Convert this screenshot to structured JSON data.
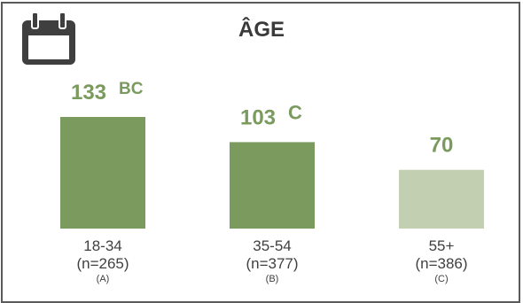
{
  "title": "ÂGE",
  "icon": "calendar-icon",
  "colors": {
    "strong": "#7a9a5e",
    "light": "#c2cfb1",
    "value_text": "#7a9a5e",
    "border": "#5a5a5a"
  },
  "chart_data": {
    "type": "bar",
    "categories": [
      "18-34",
      "35-54",
      "55+"
    ],
    "values": [
      133,
      103,
      70
    ],
    "sample_sizes": [
      "(n=265)",
      "(n=377)",
      "(n=386)"
    ],
    "group_letters": [
      "(A)",
      "(B)",
      "(C)"
    ],
    "significance": [
      "BC",
      "C",
      ""
    ],
    "bar_styles": [
      "strong",
      "strong",
      "light"
    ],
    "title": "ÂGE",
    "xlabel": "",
    "ylabel": ""
  }
}
